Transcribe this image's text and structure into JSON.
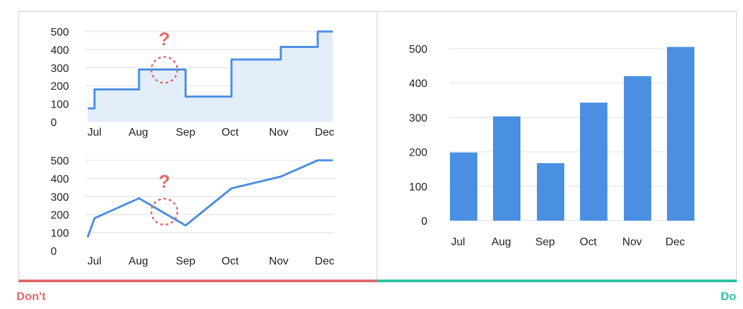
{
  "labels": {
    "dont": "Don't",
    "do": "Do",
    "question": "?"
  },
  "colors": {
    "series": "#4a8ee0",
    "bar": "#4a8fe2",
    "fill": "#e3edfa",
    "dont": "#e06b6b",
    "do": "#2fc2a6"
  },
  "chart_data": [
    {
      "type": "area",
      "style": "step",
      "categories": [
        "Jul",
        "Aug",
        "Sep",
        "Oct",
        "Nov",
        "Dec"
      ],
      "values": [
        180,
        290,
        140,
        345,
        415,
        500
      ],
      "start_value": 75,
      "yticks": [
        0,
        100,
        200,
        300,
        400,
        500
      ],
      "ylim": [
        0,
        500
      ],
      "grid": true,
      "annotation": "?"
    },
    {
      "type": "line",
      "categories": [
        "Jul",
        "Aug",
        "Sep",
        "Oct",
        "Nov",
        "Dec"
      ],
      "values": [
        180,
        290,
        140,
        345,
        410,
        500
      ],
      "start_value": 75,
      "yticks": [
        0,
        100,
        200,
        300,
        400,
        500
      ],
      "ylim": [
        0,
        500
      ],
      "grid": true,
      "annotation": "?"
    },
    {
      "type": "bar",
      "categories": [
        "Jul",
        "Aug",
        "Sep",
        "Oct",
        "Nov",
        "Dec"
      ],
      "values": [
        198,
        303,
        167,
        343,
        420,
        505
      ],
      "yticks": [
        0,
        100,
        200,
        300,
        400,
        500
      ],
      "ylim": [
        0,
        500
      ],
      "grid": true
    }
  ]
}
